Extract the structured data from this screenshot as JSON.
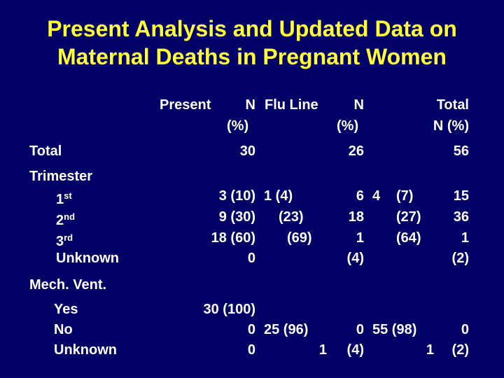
{
  "header": {
    "title": [
      "Present Analysis and Updated Data on",
      "Maternal Deaths in Pregnant Women"
    ]
  },
  "table": {
    "column_headers": [
      "Present",
      "N",
      "(%)",
      "Flu Line",
      "N",
      "(%)",
      "Total",
      "N (%)"
    ],
    "rows": [
      {
        "label": "Total",
        "cells": [
          "30",
          "26",
          "56"
        ]
      },
      {
        "label": "Trimester"
      },
      {
        "label": {
          "number": "1",
          "suffix": "st"
        },
        "cells": [
          "3 (10)",
          "1 (4)",
          "6",
          "4",
          "(7)",
          "15"
        ]
      },
      {
        "label": {
          "number": "2",
          "suffix": "nd"
        },
        "cells": [
          "9 (30)",
          "(23)",
          "18",
          "(27)",
          "36"
        ]
      },
      {
        "label": {
          "number": "3",
          "suffix": "rd"
        },
        "cells": [
          "18 (60)",
          "(69)",
          "1",
          "(64)",
          "1"
        ]
      },
      {
        "label": "Unknown",
        "cells": [
          "0",
          "(4)",
          "(2)"
        ]
      },
      {
        "label": "Mech. Vent."
      },
      {
        "label": "Yes",
        "cells": [
          "30 (100)"
        ]
      },
      {
        "label": "No",
        "cells": [
          "0",
          "25 (96)",
          "0",
          "55 (98)",
          "0"
        ]
      },
      {
        "label": "Unknown",
        "cells": [
          "0",
          "1",
          "(4)",
          "1",
          "(2)"
        ]
      }
    ]
  }
}
